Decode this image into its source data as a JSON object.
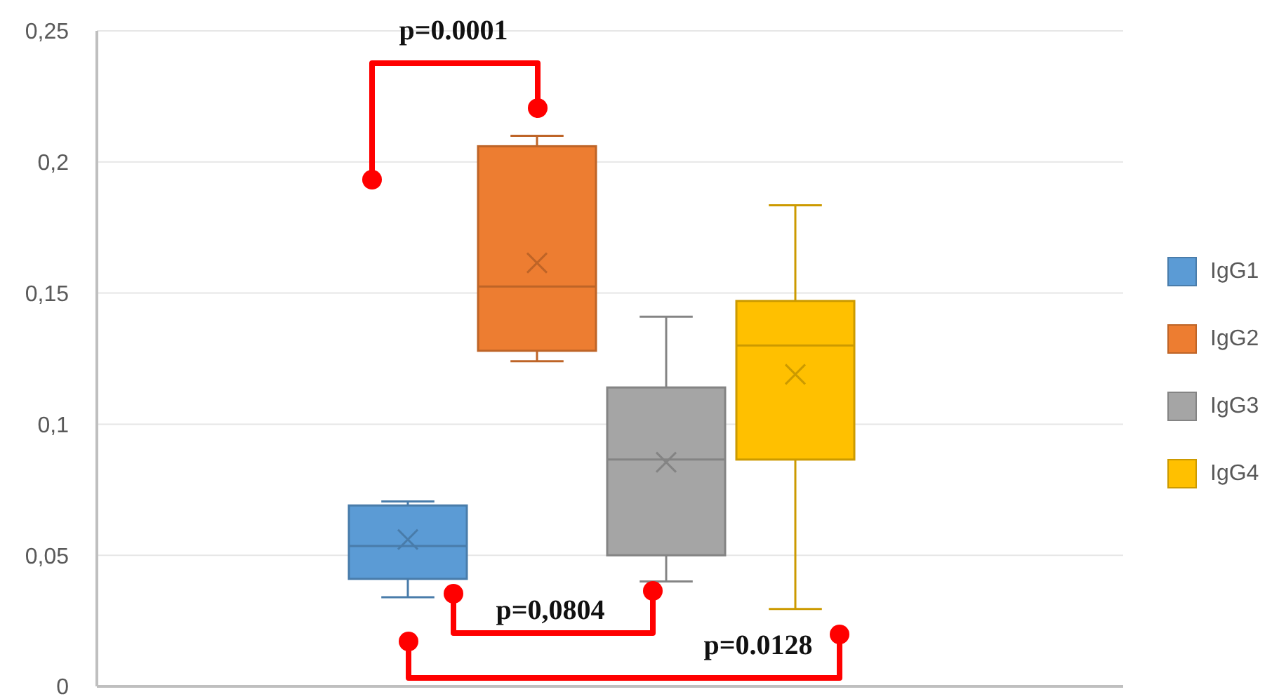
{
  "chart_data": {
    "type": "box",
    "categories": [
      null
    ],
    "series": [
      {
        "name": "IgG1",
        "color": "#5b9bd5",
        "boxes": [
          {
            "low": 0.034,
            "q1": 0.041,
            "median": 0.0535,
            "q3": 0.069,
            "high": 0.0705,
            "mean": 0.056
          }
        ]
      },
      {
        "name": "IgG2",
        "color": "#ed7d31",
        "boxes": [
          {
            "low": 0.124,
            "q1": 0.128,
            "median": 0.1525,
            "q3": 0.206,
            "high": 0.21,
            "mean": 0.1615
          }
        ]
      },
      {
        "name": "IgG3",
        "color": "#a5a5a5",
        "boxes": [
          {
            "low": 0.04,
            "q1": 0.05,
            "median": 0.0865,
            "q3": 0.114,
            "high": 0.141,
            "mean": 0.0855
          }
        ]
      },
      {
        "name": "IgG4",
        "color": "#ffc000",
        "boxes": [
          {
            "low": 0.0295,
            "q1": 0.0865,
            "median": 0.13,
            "q3": 0.147,
            "high": 0.1835,
            "mean": 0.119
          }
        ]
      }
    ],
    "ylim": [
      0,
      0.25
    ],
    "yticks": [
      {
        "value": 0,
        "label": "0"
      },
      {
        "value": 0.05,
        "label": "0,05"
      },
      {
        "value": 0.1,
        "label": "0,1"
      },
      {
        "value": 0.15,
        "label": "0,15"
      },
      {
        "value": 0.2,
        "label": "0,2"
      },
      {
        "value": 0.25,
        "label": "0,25"
      }
    ],
    "grid": "y",
    "legend": "right",
    "annotations": [
      "p=0.0001",
      "p=0,0804",
      "p=0.0128"
    ]
  }
}
